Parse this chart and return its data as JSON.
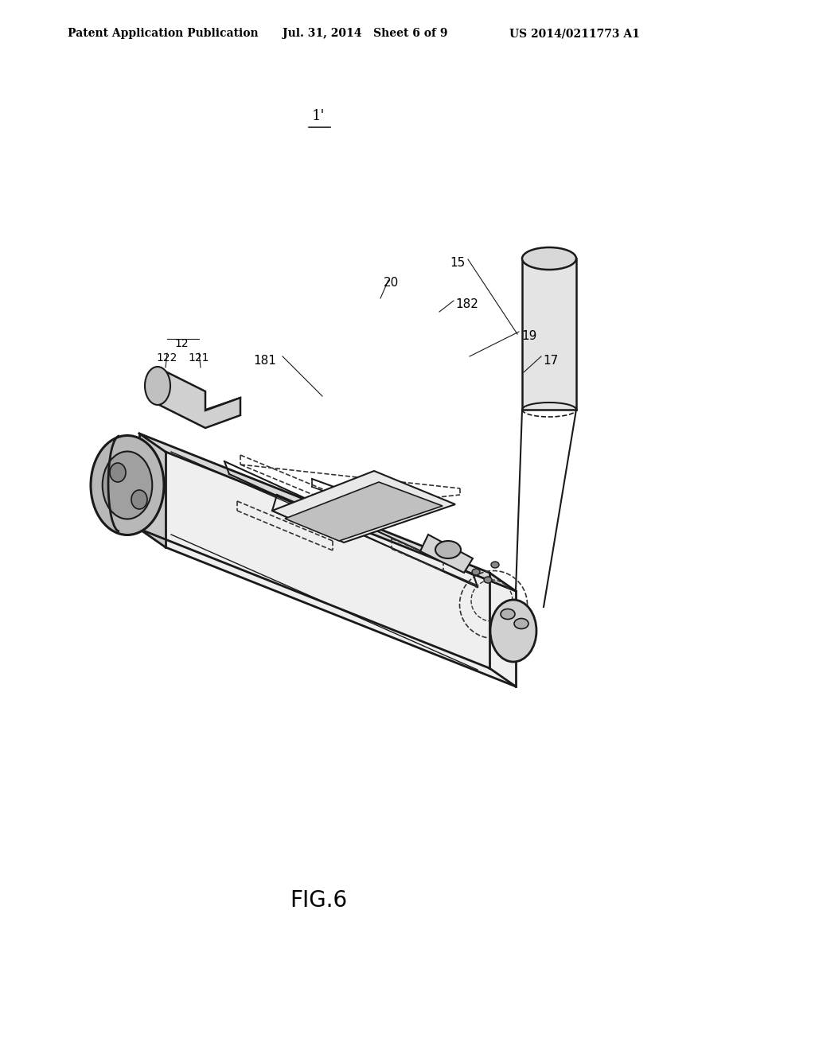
{
  "background_color": "#ffffff",
  "title_text": "FIG.6",
  "header_left": "Patent Application Publication",
  "header_center": "Jul. 31, 2014   Sheet 6 of 9",
  "header_right": "US 2014/0211773 A1",
  "label_1prime": "1'",
  "line_color": "#1a1a1a",
  "dashed_color": "#333333",
  "text_color": "#000000"
}
